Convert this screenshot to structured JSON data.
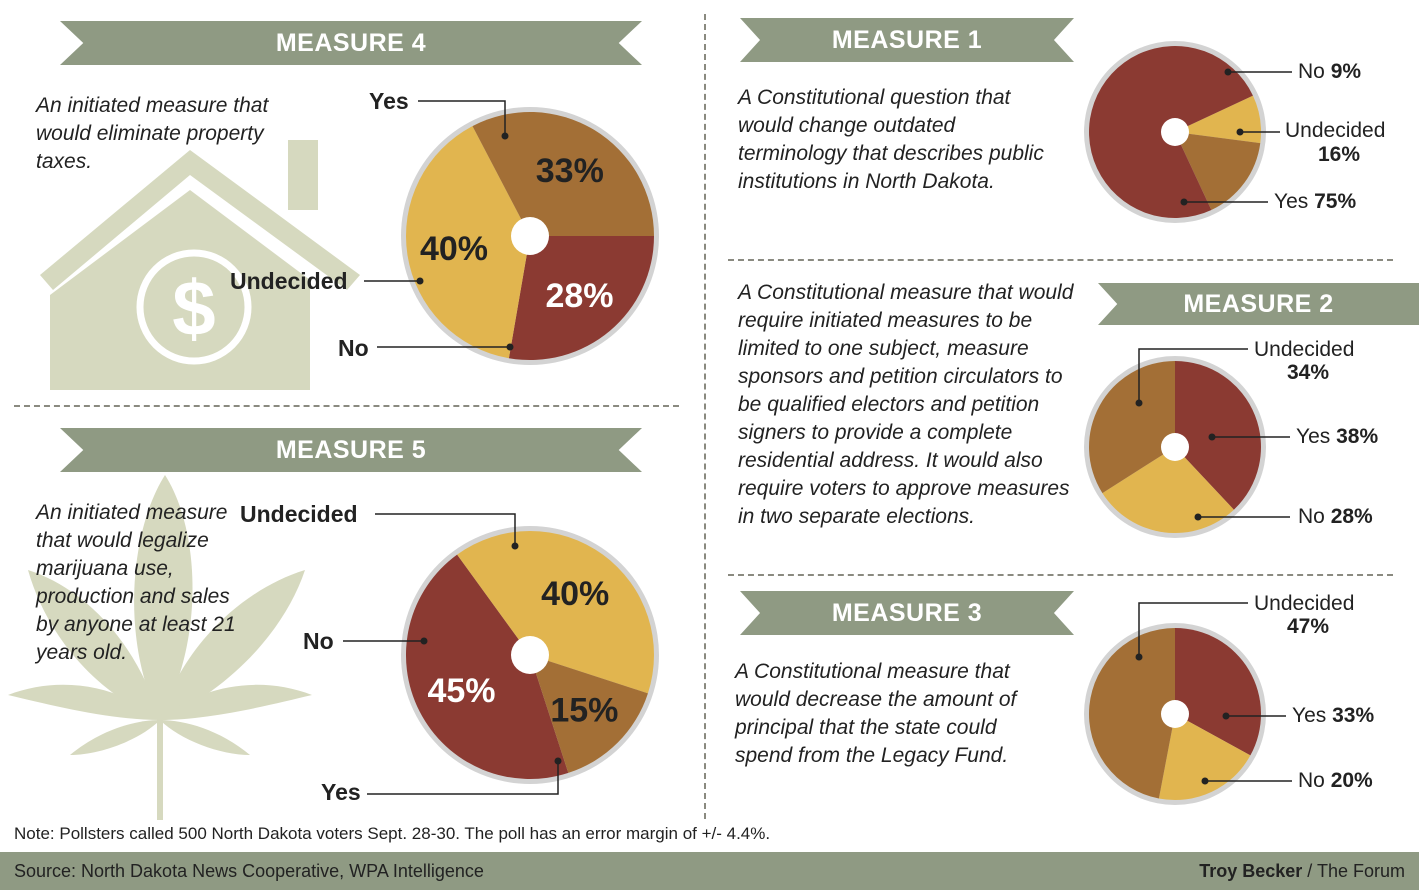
{
  "measure4": {
    "title": "MEASURE 4",
    "desc": "An initiated measure that would eliminate property taxes.",
    "icons": [
      "house-icon",
      "dollar-icon"
    ],
    "chart_data": {
      "type": "pie",
      "slices": [
        {
          "label": "Yes",
          "value": 28,
          "display": "28%",
          "color": "#8b3a32"
        },
        {
          "label": "No",
          "value": 40,
          "display": "40%",
          "color": "#e1b54f"
        },
        {
          "label": "Undecided",
          "value": 33,
          "display": "33%",
          "color": "#a36f36"
        }
      ]
    }
  },
  "measure5": {
    "title": "MEASURE 5",
    "desc": "An initiated measure that would legalize marijuana use, production and sales by anyone at least 21 years old.",
    "icons": [
      "cannabis-leaf-icon"
    ],
    "chart_data": {
      "type": "pie",
      "slices": [
        {
          "label": "Yes",
          "value": 45,
          "display": "45%",
          "color": "#8b3a32"
        },
        {
          "label": "No",
          "value": 40,
          "display": "40%",
          "color": "#e1b54f"
        },
        {
          "label": "Undecided",
          "value": 15,
          "display": "15%",
          "color": "#a36f36"
        }
      ]
    }
  },
  "measure1": {
    "title": "MEASURE 1",
    "desc": "A Constitutional question that would change outdated terminology that describes public institutions in North Dakota.",
    "chart_data": {
      "type": "pie",
      "slices": [
        {
          "label": "No",
          "value": 9,
          "display": "9%",
          "color": "#e1b54f"
        },
        {
          "label": "Undecided",
          "value": 16,
          "display": "16%",
          "color": "#a36f36"
        },
        {
          "label": "Yes",
          "value": 75,
          "display": "75%",
          "color": "#8b3a32"
        }
      ]
    }
  },
  "measure2": {
    "title": "MEASURE 2",
    "desc": "A Constitutional measure that would require initiated measures to be limited to one subject, measure sponsors and petition circulators to be qualified electors and petition signers to provide a complete residential address. It would also require voters to approve measures in two separate elections.",
    "chart_data": {
      "type": "pie",
      "slices": [
        {
          "label": "Yes",
          "value": 38,
          "display": "38%",
          "color": "#8b3a32"
        },
        {
          "label": "No",
          "value": 28,
          "display": "28%",
          "color": "#e1b54f"
        },
        {
          "label": "Undecided",
          "value": 34,
          "display": "34%",
          "color": "#a36f36"
        }
      ]
    }
  },
  "measure3": {
    "title": "MEASURE 3",
    "desc": "A Constitutional measure that would decrease the amount of principal that the state could spend from the Legacy Fund.",
    "chart_data": {
      "type": "pie",
      "slices": [
        {
          "label": "Yes",
          "value": 33,
          "display": "33%",
          "color": "#8b3a32"
        },
        {
          "label": "No",
          "value": 20,
          "display": "20%",
          "color": "#e1b54f"
        },
        {
          "label": "Undecided",
          "value": 47,
          "display": "47%",
          "color": "#a36f36"
        }
      ]
    }
  },
  "note": "Note: Pollsters called 500 North Dakota voters Sept. 28-30. The poll has an error margin of +/- 4.4%.",
  "source": "Source: North Dakota News Cooperative, WPA Intelligence",
  "credit_name": "Troy Becker",
  "credit_org": " / The Forum",
  "colors": {
    "banner": "#8f9a83",
    "icon": "#d6d9bf",
    "yes": "#8b3a32",
    "no": "#e1b54f",
    "undecided": "#a36f36"
  }
}
